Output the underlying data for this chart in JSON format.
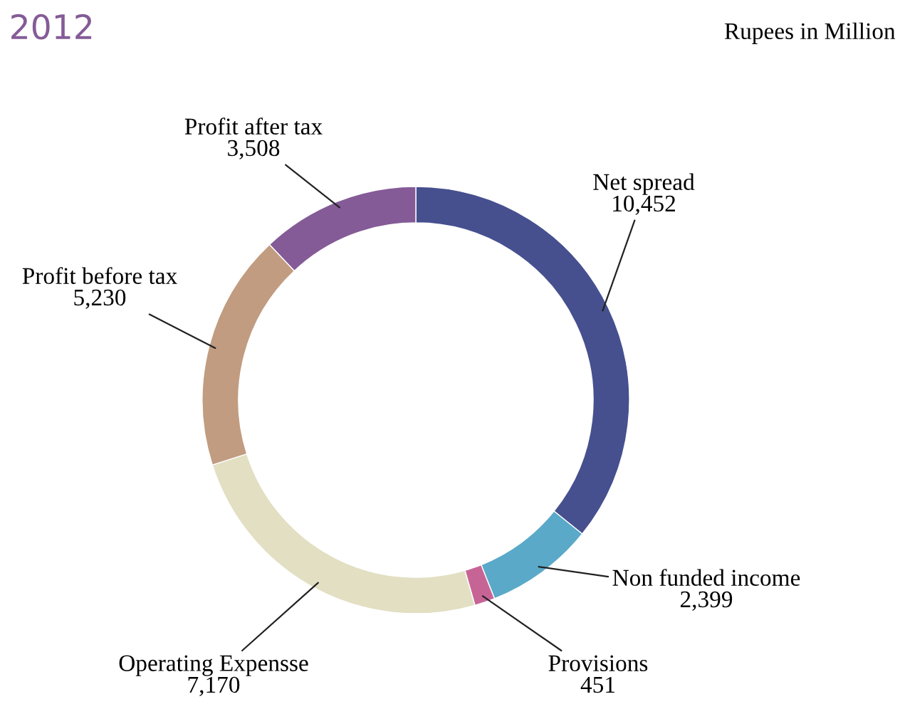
{
  "chart_data": {
    "type": "donut",
    "title": "2012",
    "annotations": [
      "Rupees in Million"
    ],
    "categories": [
      "Net spread",
      "Non funded income",
      "Provisions",
      "Operating Expensse",
      "Profit before tax",
      "Profit after tax"
    ],
    "values": [
      10452,
      2399,
      451,
      7170,
      5230,
      3508
    ],
    "value_labels": [
      "10,452",
      "2,399",
      "451",
      "7,170",
      "5,230",
      "3,508"
    ],
    "colors": [
      "#46508f",
      "#5aa9c8",
      "#c76496",
      "#e3dfc3",
      "#c19c80",
      "#845b97"
    ],
    "legend": false
  }
}
